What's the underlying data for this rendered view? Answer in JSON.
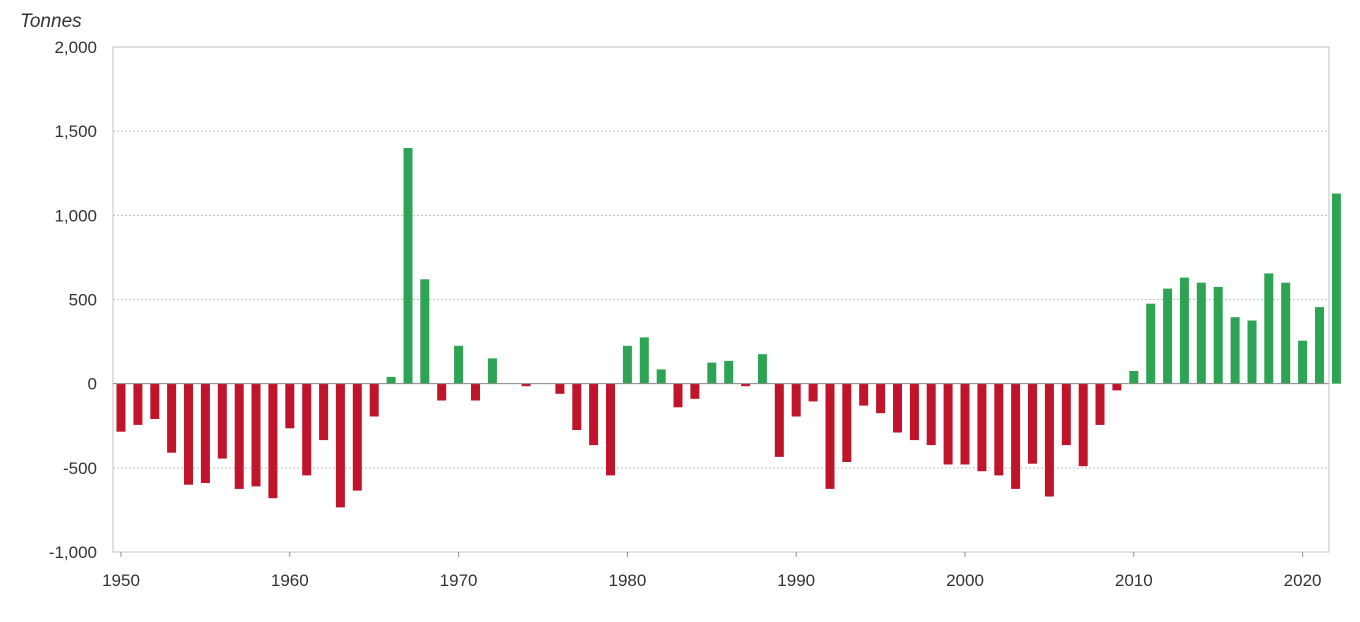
{
  "chart_data": {
    "type": "bar",
    "unit_label": "Tonnes",
    "ylim": [
      -1000,
      2000
    ],
    "yticks": [
      -1000,
      -500,
      0,
      500,
      1000,
      1500,
      2000
    ],
    "ytick_labels": [
      "-1,000",
      "-500",
      "0",
      "500",
      "1,000",
      "1,500",
      "2,000"
    ],
    "xticks": [
      1950,
      1960,
      1970,
      1980,
      1990,
      2000,
      2010,
      2020
    ],
    "xtick_labels": [
      "1950",
      "1960",
      "1970",
      "1980",
      "1990",
      "2000",
      "2010",
      "2020"
    ],
    "grid": true,
    "colors": {
      "positive": "#2ca453",
      "negative": "#c0142b"
    },
    "x": [
      1950,
      1951,
      1952,
      1953,
      1954,
      1955,
      1956,
      1957,
      1958,
      1959,
      1960,
      1961,
      1962,
      1963,
      1964,
      1965,
      1966,
      1967,
      1968,
      1969,
      1970,
      1971,
      1972,
      1973,
      1974,
      1975,
      1976,
      1977,
      1978,
      1979,
      1980,
      1981,
      1982,
      1983,
      1984,
      1985,
      1986,
      1987,
      1988,
      1989,
      1990,
      1991,
      1992,
      1993,
      1994,
      1995,
      1996,
      1997,
      1998,
      1999,
      2000,
      2001,
      2002,
      2003,
      2004,
      2005,
      2006,
      2007,
      2008,
      2009,
      2010,
      2011,
      2012,
      2013,
      2014,
      2015,
      2016,
      2017,
      2018,
      2019,
      2020,
      2021,
      2022
    ],
    "values": [
      -285,
      -245,
      -210,
      -410,
      -600,
      -590,
      -445,
      -625,
      -610,
      -680,
      -265,
      -545,
      -335,
      -735,
      -635,
      -195,
      40,
      1400,
      620,
      -100,
      225,
      -100,
      150,
      0,
      -15,
      0,
      -60,
      -275,
      -365,
      -545,
      225,
      275,
      85,
      -140,
      -90,
      125,
      135,
      -15,
      175,
      -435,
      -195,
      -105,
      -625,
      -465,
      -130,
      -175,
      -290,
      -335,
      -365,
      -480,
      -480,
      -520,
      -545,
      -625,
      -475,
      -670,
      -365,
      -490,
      -245,
      -40,
      75,
      475,
      565,
      630,
      600,
      575,
      395,
      375,
      655,
      600,
      255,
      455,
      1130
    ]
  }
}
